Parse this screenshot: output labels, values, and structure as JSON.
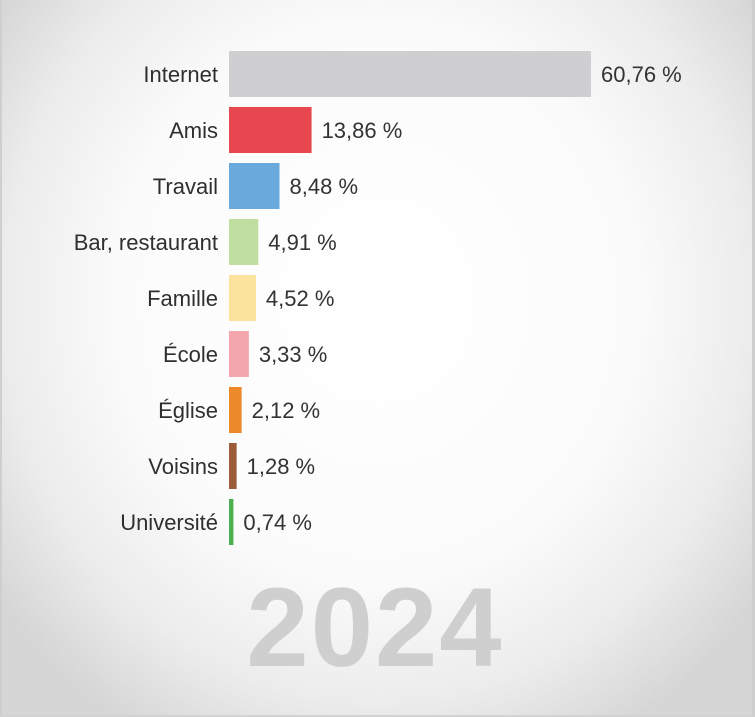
{
  "chart_data": {
    "type": "bar",
    "orientation": "horizontal",
    "categories": [
      "Internet",
      "Amis",
      "Travail",
      "Bar, restaurant",
      "Famille",
      "École",
      "Église",
      "Voisins",
      "Université"
    ],
    "values": [
      60.76,
      13.86,
      8.48,
      4.91,
      4.52,
      3.33,
      2.12,
      1.28,
      0.74
    ],
    "value_labels": [
      "60,76 %",
      "13,86 %",
      "8,48 %",
      "4,91 %",
      "4,52 %",
      "3,33 %",
      "2,12 %",
      "1,28 %",
      "0,74 %"
    ],
    "colors": [
      "#cfcfd1",
      "#e8474f",
      "#6aa9dc",
      "#bfdea0",
      "#fbe39d",
      "#f3a6ad",
      "#ec8a2b",
      "#9c5c3a",
      "#4caf50"
    ],
    "year": "2024",
    "xlim": [
      0,
      60.76
    ],
    "grid": false,
    "legend": "none"
  }
}
